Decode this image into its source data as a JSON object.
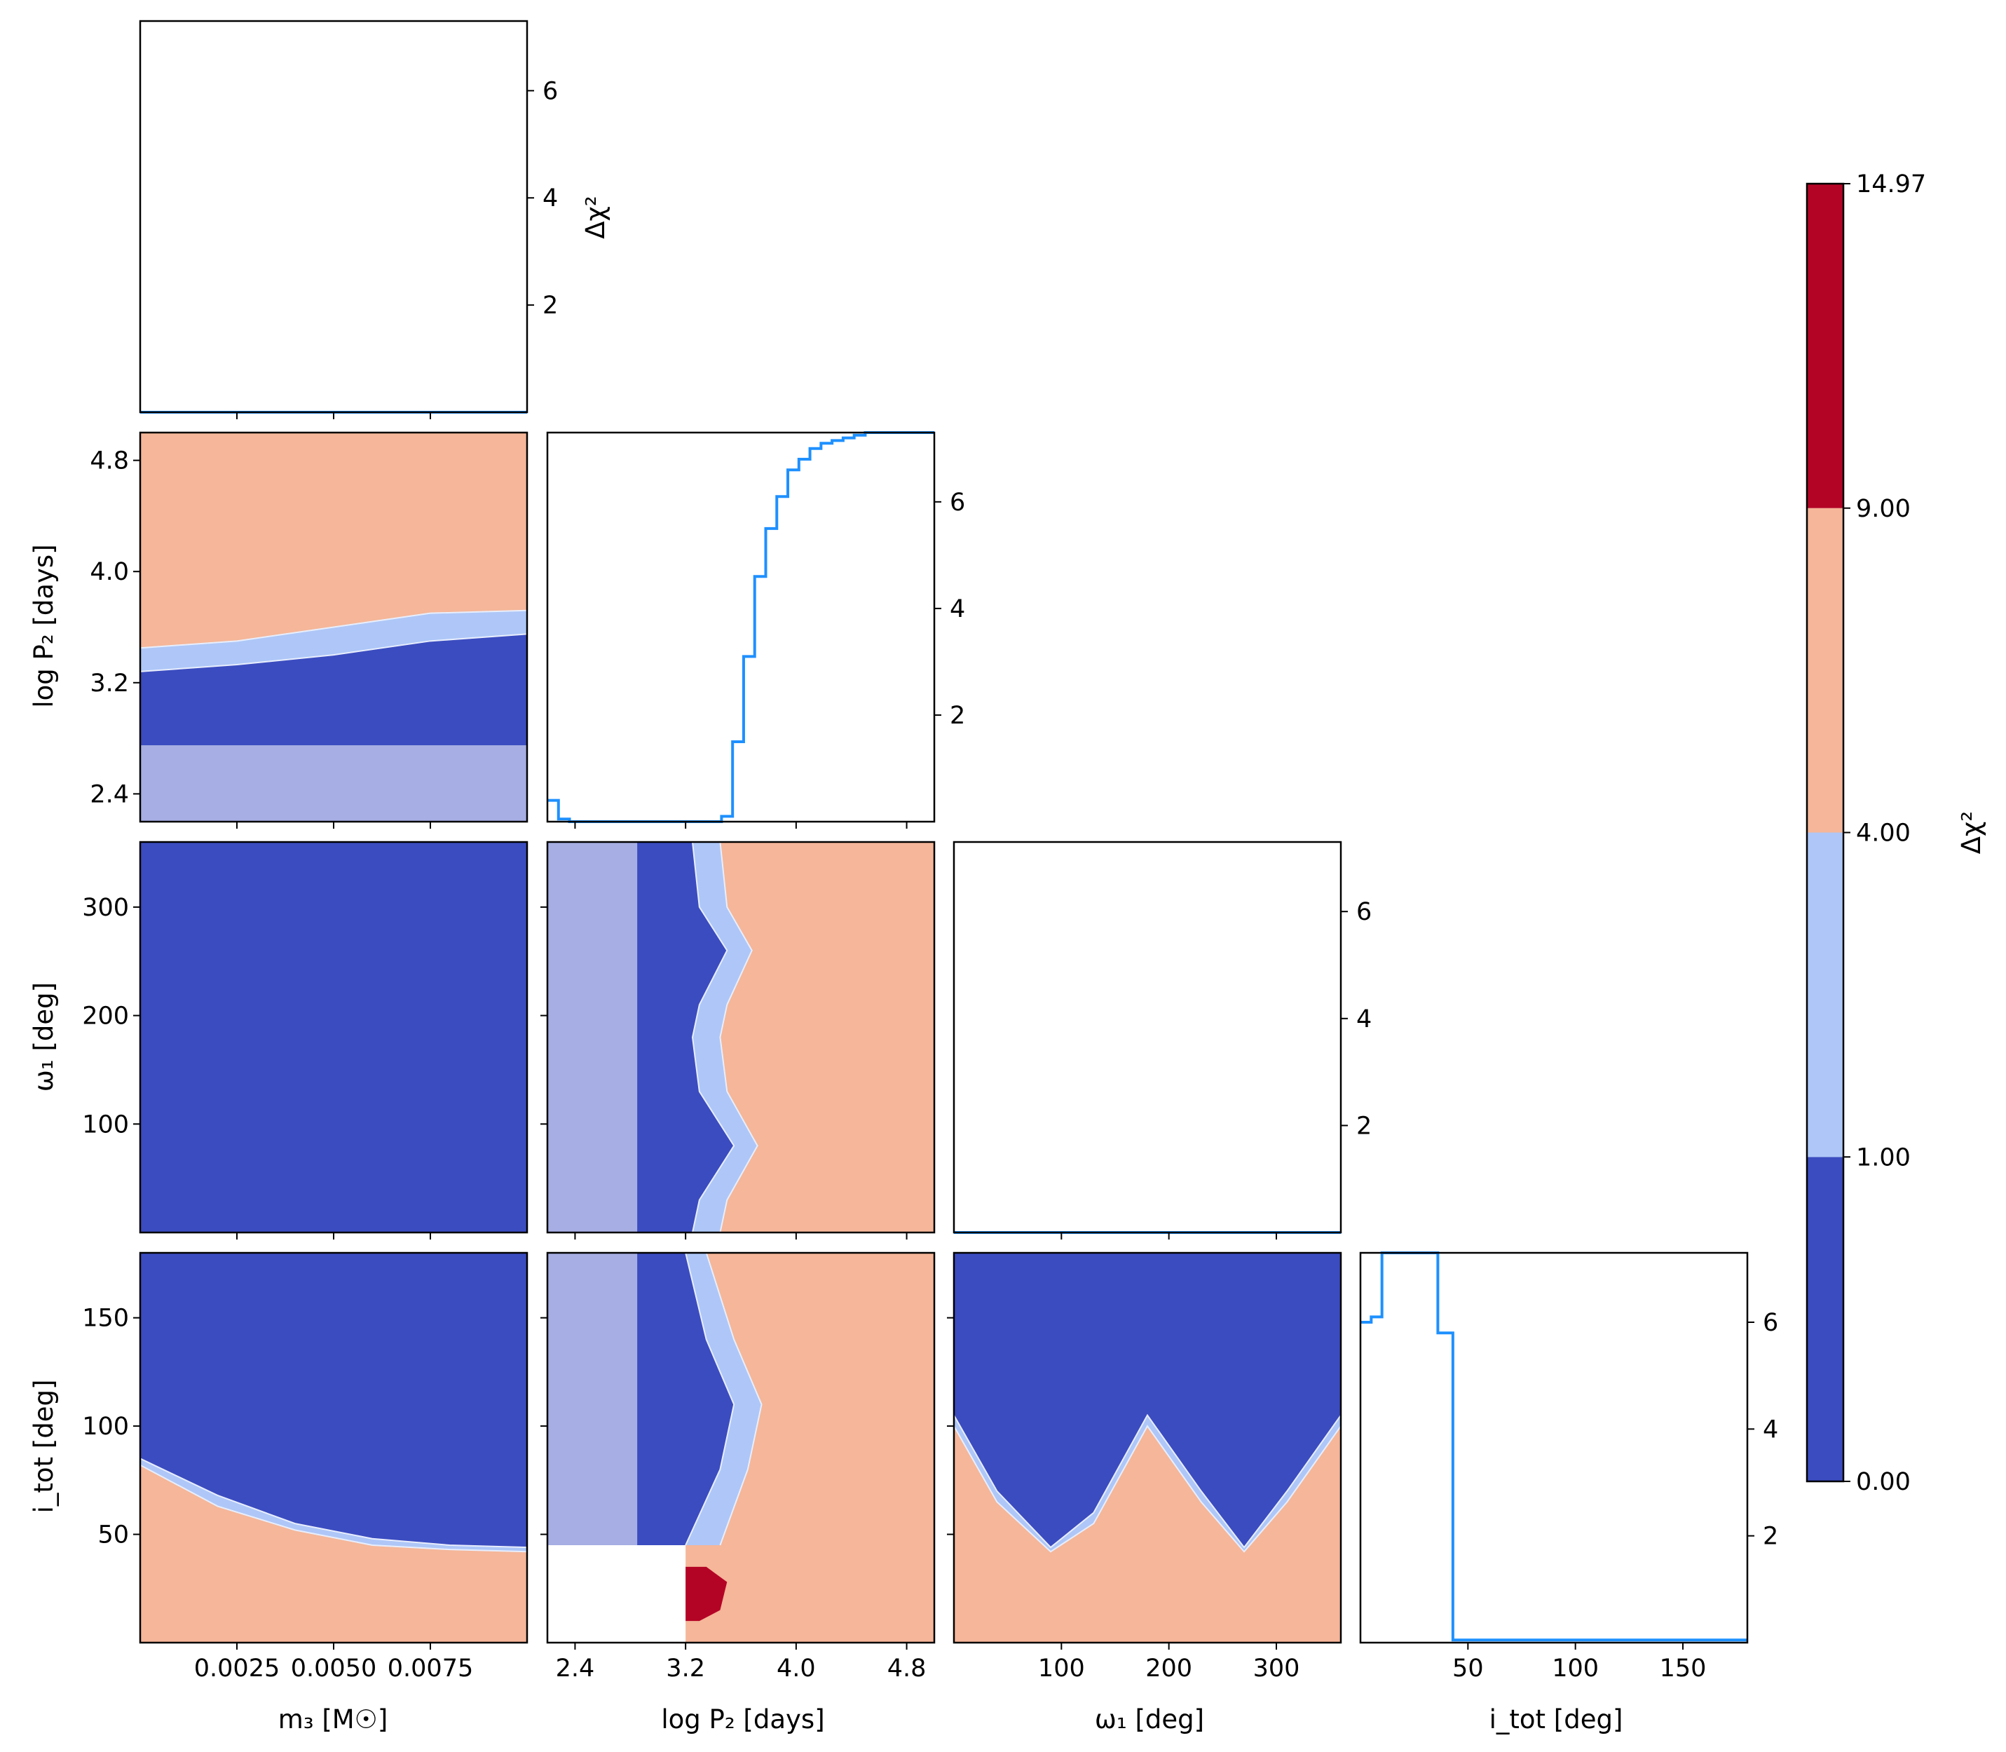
{
  "colors": {
    "level_0_1": "#3b4cc0",
    "level_1_4": "#aec7f8",
    "level_4_9": "#f5b699",
    "level_9_max": "#b40426",
    "profile_line": "#1e90ff",
    "contour_line": "#e8eefc"
  },
  "chart_data": {
    "type": "heatmap",
    "title": "",
    "parameters": [
      {
        "key": "m3",
        "label": "m₃ [M☉]",
        "range": [
          0.0,
          0.01
        ],
        "ticks": [
          0.0025,
          0.005,
          0.0075
        ],
        "tick_labels": [
          "0.0025",
          "0.0050",
          "0.0075"
        ]
      },
      {
        "key": "logP2",
        "label": "log P₂ [days]",
        "range": [
          2.2,
          5.0
        ],
        "ticks": [
          2.4,
          3.2,
          4.0,
          4.8
        ],
        "tick_labels": [
          "2.4",
          "3.2",
          "4.0",
          "4.8"
        ]
      },
      {
        "key": "omega1",
        "label": "ω₁ [deg]",
        "range": [
          0,
          360
        ],
        "ticks": [
          100,
          200,
          300
        ],
        "tick_labels": [
          "100",
          "200",
          "300"
        ]
      },
      {
        "key": "itot",
        "label": "i_tot [deg]",
        "range": [
          0,
          180
        ],
        "ticks": [
          50,
          100,
          150
        ],
        "tick_labels": [
          "50",
          "100",
          "150"
        ]
      }
    ],
    "profile_axis": {
      "label": "Δχ²",
      "range": [
        0,
        7.3
      ],
      "ticks": [
        2,
        4,
        6
      ],
      "tick_labels": [
        "2",
        "4",
        "6"
      ]
    },
    "colorbar": {
      "label": "Δχ²",
      "levels": [
        0.0,
        1.0,
        4.0,
        9.0,
        14.97
      ],
      "tick_labels": [
        "0.00",
        "1.00",
        "4.00",
        "9.00",
        "14.97"
      ]
    },
    "profiles": {
      "m3": {
        "x": [
          0.0,
          0.01
        ],
        "y": [
          0.0,
          0.0
        ]
      },
      "logP2": {
        "x": [
          2.2,
          2.28,
          2.28,
          2.36,
          2.36,
          3.46,
          3.46,
          3.54,
          3.54,
          3.62,
          3.62,
          3.7,
          3.7,
          3.78,
          3.78,
          3.86,
          3.86,
          3.94,
          3.94,
          4.02,
          4.02,
          4.1,
          4.1,
          4.18,
          4.18,
          4.26,
          4.26,
          4.34,
          4.34,
          4.42,
          4.42,
          4.5,
          4.5,
          4.6,
          4.6,
          5.0
        ],
        "y": [
          0.4,
          0.4,
          0.05,
          0.05,
          0.0,
          0.0,
          0.1,
          0.1,
          1.5,
          1.5,
          3.1,
          3.1,
          4.6,
          4.6,
          5.5,
          5.5,
          6.1,
          6.1,
          6.6,
          6.6,
          6.8,
          6.8,
          7.0,
          7.0,
          7.1,
          7.1,
          7.15,
          7.15,
          7.2,
          7.2,
          7.25,
          7.25,
          7.3,
          7.3,
          7.3,
          7.3
        ]
      },
      "omega1": {
        "x": [
          0,
          360
        ],
        "y": [
          0.0,
          0.0
        ]
      },
      "itot": {
        "x": [
          0,
          5,
          5,
          10,
          10,
          36,
          36,
          43,
          43,
          180
        ],
        "y": [
          6.0,
          6.0,
          6.1,
          6.1,
          7.3,
          7.3,
          5.8,
          5.8,
          0.05,
          0.05
        ]
      }
    },
    "panels": [
      {
        "x": "m3",
        "y": "logP2",
        "boundaries": [
          {
            "level": 1,
            "pts": [
              [
                0.0,
                3.28
              ],
              [
                0.0025,
                3.33
              ],
              [
                0.005,
                3.4
              ],
              [
                0.0075,
                3.5
              ],
              [
                0.01,
                3.55
              ]
            ]
          },
          {
            "level": 4,
            "pts": [
              [
                0.0,
                3.45
              ],
              [
                0.0025,
                3.5
              ],
              [
                0.005,
                3.6
              ],
              [
                0.0075,
                3.7
              ],
              [
                0.01,
                3.72
              ]
            ]
          }
        ]
      },
      {
        "x": "m3",
        "y": "omega1",
        "boundaries": []
      },
      {
        "x": "logP2",
        "y": "omega1",
        "boundaries": [
          {
            "level": 1,
            "axis": "y",
            "pts": [
              [
                0,
                3.25
              ],
              [
                30,
                3.3
              ],
              [
                80,
                3.55
              ],
              [
                130,
                3.3
              ],
              [
                180,
                3.25
              ],
              [
                210,
                3.3
              ],
              [
                260,
                3.5
              ],
              [
                300,
                3.3
              ],
              [
                360,
                3.25
              ]
            ]
          },
          {
            "level": 4,
            "axis": "y",
            "pts": [
              [
                0,
                3.45
              ],
              [
                30,
                3.5
              ],
              [
                80,
                3.72
              ],
              [
                130,
                3.5
              ],
              [
                180,
                3.45
              ],
              [
                210,
                3.5
              ],
              [
                260,
                3.68
              ],
              [
                300,
                3.5
              ],
              [
                360,
                3.45
              ]
            ]
          }
        ]
      },
      {
        "x": "m3",
        "y": "itot",
        "boundaries": [
          {
            "level": 1,
            "pts": [
              [
                0.0,
                85
              ],
              [
                0.002,
                68
              ],
              [
                0.004,
                55
              ],
              [
                0.006,
                48
              ],
              [
                0.008,
                45
              ],
              [
                0.01,
                44
              ]
            ]
          },
          {
            "level": 4,
            "pts": [
              [
                0.0,
                82
              ],
              [
                0.002,
                63
              ],
              [
                0.004,
                52
              ],
              [
                0.006,
                45
              ],
              [
                0.008,
                43
              ],
              [
                0.01,
                42
              ]
            ]
          }
        ]
      },
      {
        "x": "logP2",
        "y": "itot",
        "boundaries": [
          {
            "level": 1,
            "axis": "y",
            "pts": [
              [
                45,
                3.2
              ],
              [
                80,
                3.45
              ],
              [
                110,
                3.55
              ],
              [
                140,
                3.35
              ],
              [
                180,
                3.2
              ]
            ]
          },
          {
            "level": 4,
            "axis": "y",
            "pts": [
              [
                45,
                3.45
              ],
              [
                80,
                3.65
              ],
              [
                110,
                3.75
              ],
              [
                140,
                3.55
              ],
              [
                180,
                3.35
              ]
            ]
          }
        ]
      },
      {
        "x": "omega1",
        "y": "itot",
        "boundaries": [
          {
            "level": 1,
            "pts": [
              [
                0,
                105
              ],
              [
                40,
                70
              ],
              [
                90,
                44
              ],
              [
                130,
                60
              ],
              [
                180,
                105
              ],
              [
                230,
                70
              ],
              [
                270,
                44
              ],
              [
                310,
                70
              ],
              [
                360,
                105
              ]
            ]
          },
          {
            "level": 4,
            "pts": [
              [
                0,
                100
              ],
              [
                40,
                65
              ],
              [
                90,
                42
              ],
              [
                130,
                55
              ],
              [
                180,
                100
              ],
              [
                230,
                65
              ],
              [
                270,
                42
              ],
              [
                310,
                65
              ],
              [
                360,
                100
              ]
            ]
          }
        ]
      }
    ],
    "red_region": {
      "x": "logP2",
      "y": "itot",
      "pts": [
        [
          3.2,
          10
        ],
        [
          3.2,
          35
        ],
        [
          3.35,
          35
        ],
        [
          3.5,
          28
        ],
        [
          3.45,
          15
        ],
        [
          3.3,
          10
        ]
      ]
    }
  }
}
